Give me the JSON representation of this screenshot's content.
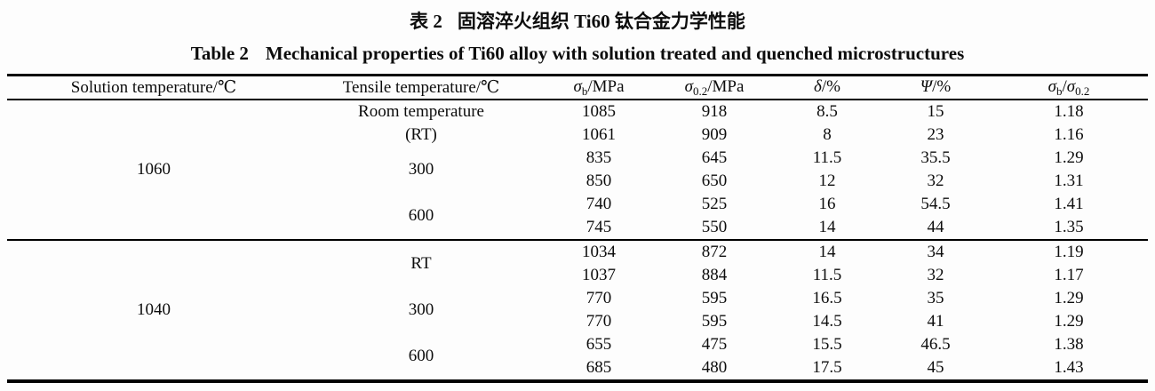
{
  "title_cn": {
    "prefix": "表 2",
    "text": "固溶淬火组织 Ti60 钛合金力学性能"
  },
  "title_en": {
    "prefix": "Table 2",
    "text": "Mechanical properties of Ti60 alloy with solution treated and quenched microstructures"
  },
  "table": {
    "columns": [
      {
        "name": "solution-temperature",
        "parts": [
          {
            "t": "Solution temperature/℃"
          }
        ]
      },
      {
        "name": "tensile-temperature",
        "parts": [
          {
            "t": "Tensile temperature/℃"
          }
        ]
      },
      {
        "name": "sigma-b",
        "parts": [
          {
            "t": "σ",
            "i": true
          },
          {
            "t": "b",
            "sub": true
          },
          {
            "t": "/MPa"
          }
        ]
      },
      {
        "name": "sigma-0-2",
        "parts": [
          {
            "t": "σ",
            "i": true
          },
          {
            "t": "0.2",
            "sub": true
          },
          {
            "t": "/MPa"
          }
        ]
      },
      {
        "name": "delta",
        "parts": [
          {
            "t": "δ",
            "i": true
          },
          {
            "t": "/%"
          }
        ]
      },
      {
        "name": "psi",
        "parts": [
          {
            "t": "Ψ",
            "i": true
          },
          {
            "t": "/%"
          }
        ]
      },
      {
        "name": "sigma-ratio",
        "parts": [
          {
            "t": "σ",
            "i": true
          },
          {
            "t": "b",
            "sub": true
          },
          {
            "t": "/"
          },
          {
            "t": "σ",
            "i": true
          },
          {
            "t": "0.2",
            "sub": true
          }
        ]
      }
    ],
    "groups": [
      {
        "solution_temp": "1060",
        "subgroups": [
          {
            "tensile_temp_lines": [
              "Room temperature",
              "(RT)"
            ],
            "rows": [
              [
                "1085",
                "918",
                "8.5",
                "15",
                "1.18"
              ],
              [
                "1061",
                "909",
                "8",
                "23",
                "1.16"
              ]
            ]
          },
          {
            "tensile_temp_lines": [
              "300"
            ],
            "rows": [
              [
                "835",
                "645",
                "11.5",
                "35.5",
                "1.29"
              ],
              [
                "850",
                "650",
                "12",
                "32",
                "1.31"
              ]
            ]
          },
          {
            "tensile_temp_lines": [
              "600"
            ],
            "rows": [
              [
                "740",
                "525",
                "16",
                "54.5",
                "1.41"
              ],
              [
                "745",
                "550",
                "14",
                "44",
                "1.35"
              ]
            ]
          }
        ]
      },
      {
        "solution_temp": "1040",
        "subgroups": [
          {
            "tensile_temp_lines": [
              "RT"
            ],
            "rows": [
              [
                "1034",
                "872",
                "14",
                "34",
                "1.19"
              ],
              [
                "1037",
                "884",
                "11.5",
                "32",
                "1.17"
              ]
            ]
          },
          {
            "tensile_temp_lines": [
              "300"
            ],
            "rows": [
              [
                "770",
                "595",
                "16.5",
                "35",
                "1.29"
              ],
              [
                "770",
                "595",
                "14.5",
                "41",
                "1.29"
              ]
            ]
          },
          {
            "tensile_temp_lines": [
              "600"
            ],
            "rows": [
              [
                "655",
                "475",
                "15.5",
                "46.5",
                "1.38"
              ],
              [
                "685",
                "480",
                "17.5",
                "45",
                "1.43"
              ]
            ]
          }
        ]
      }
    ]
  },
  "colors": {
    "text": "#0d0d0d",
    "rule": "#000000",
    "background": "#fdfdfd"
  }
}
